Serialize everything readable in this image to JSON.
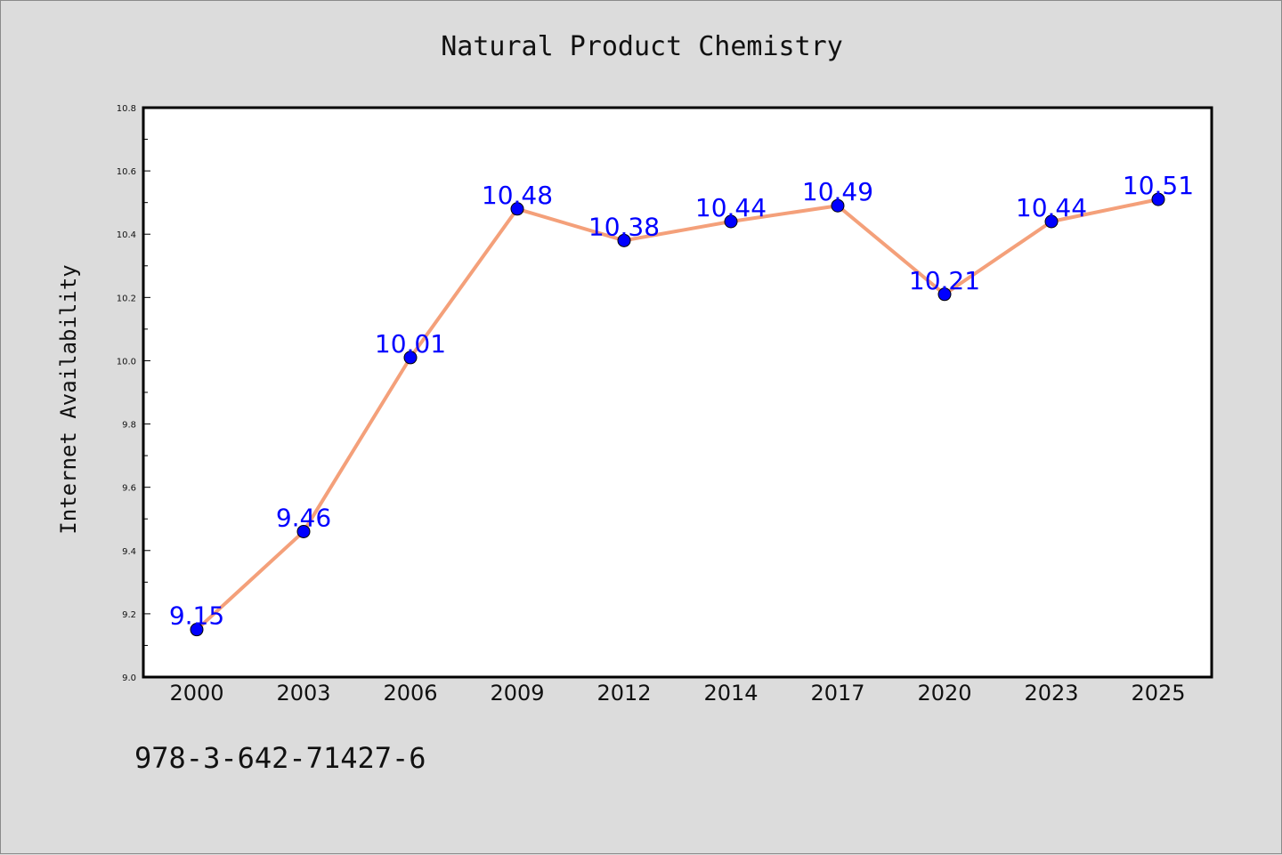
{
  "chart_data": {
    "type": "line",
    "title": "Natural Product Chemistry",
    "ylabel": "Internet Availability",
    "xlabel": "",
    "categories": [
      "2000",
      "2003",
      "2006",
      "2009",
      "2012",
      "2014",
      "2017",
      "2020",
      "2023",
      "2025"
    ],
    "series": [
      {
        "values": [
          9.15,
          9.46,
          10.01,
          10.48,
          10.38,
          10.44,
          10.49,
          10.21,
          10.44,
          10.51
        ],
        "labels": [
          "9.15",
          "9.46",
          "10.01",
          "10.48",
          "10.38",
          "10.44",
          "10.49",
          "10.21",
          "10.44",
          "10.51"
        ]
      }
    ],
    "ylim": [
      9.0,
      10.8
    ],
    "yticks": [
      "9.0",
      "9.2",
      "9.4",
      "9.6",
      "9.8",
      "10.0",
      "10.2",
      "10.4",
      "10.6",
      "10.8"
    ],
    "grid": false,
    "colors": {
      "line": "#f4a07a",
      "marker": "#0000ff",
      "label": "#0000ff"
    }
  },
  "footer": {
    "isbn": "978-3-642-71427-6"
  }
}
